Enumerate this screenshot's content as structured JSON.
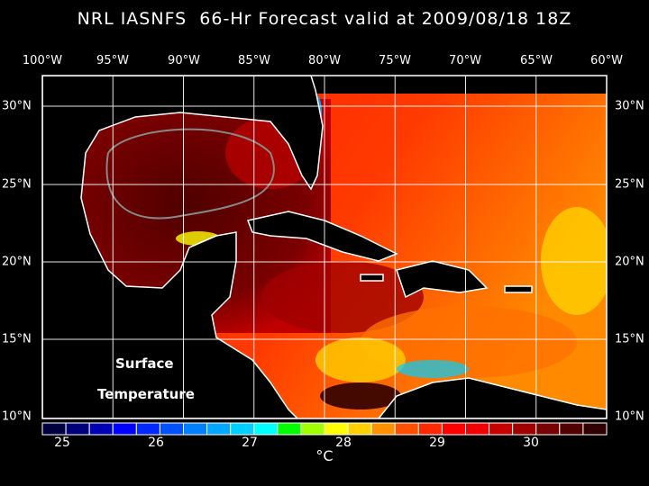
{
  "title": "NRL IASNFS  66-Hr Forecast valid at 2009/08/18 18Z",
  "lon_labels": [
    "100°W",
    "95°W",
    "90°W",
    "85°W",
    "80°W",
    "75°W",
    "70°W",
    "65°W",
    "60°W"
  ],
  "lat_labels": [
    "30°N",
    "25°N",
    "20°N",
    "15°N",
    "10°N"
  ],
  "map_label": {
    "line1": "Surface",
    "line2": "Temperature"
  },
  "colorbar": {
    "unit": "°C",
    "tick_labels": [
      "25",
      "26",
      "27",
      "28",
      "29",
      "30"
    ],
    "colors": [
      "#000040",
      "#00007a",
      "#0000b4",
      "#0000ff",
      "#0028ff",
      "#0050ff",
      "#0080ff",
      "#00a8ff",
      "#00d0ff",
      "#00ffff",
      "#00ff00",
      "#a0ff00",
      "#ffff00",
      "#ffd000",
      "#ff9000",
      "#ff5000",
      "#ff2800",
      "#ff0000",
      "#f00000",
      "#c80000",
      "#a00000",
      "#780000",
      "#500000",
      "#300000"
    ]
  }
}
